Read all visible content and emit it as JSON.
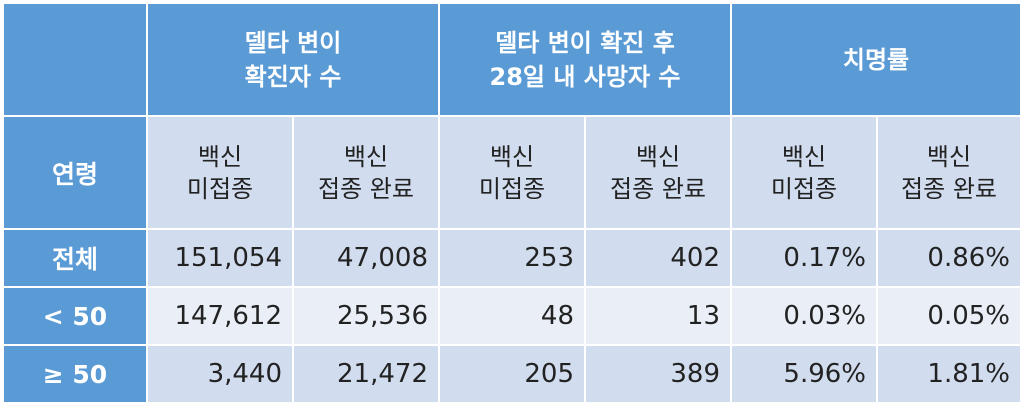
{
  "header": {
    "group1": [
      "델타 변이",
      "확진자 수"
    ],
    "group2": [
      "델타 변이 확진 후",
      "28일 내 사망자 수"
    ],
    "group3": "치명률"
  },
  "subheader": {
    "age_label": "연령",
    "unvax": [
      "백신",
      "미접종"
    ],
    "vax": [
      "백신",
      "접종 완료"
    ]
  },
  "rows": [
    {
      "label": "전체",
      "values": [
        "151,054",
        "47,008",
        "253",
        "402",
        "0.17%",
        "0.86%"
      ]
    },
    {
      "label": "< 50",
      "values": [
        "147,612",
        "25,536",
        "48",
        "13",
        "0.03%",
        "0.05%"
      ]
    },
    {
      "label": "≥ 50",
      "values": [
        "3,440",
        "21,472",
        "205",
        "389",
        "5.96%",
        "1.81%"
      ]
    }
  ]
}
